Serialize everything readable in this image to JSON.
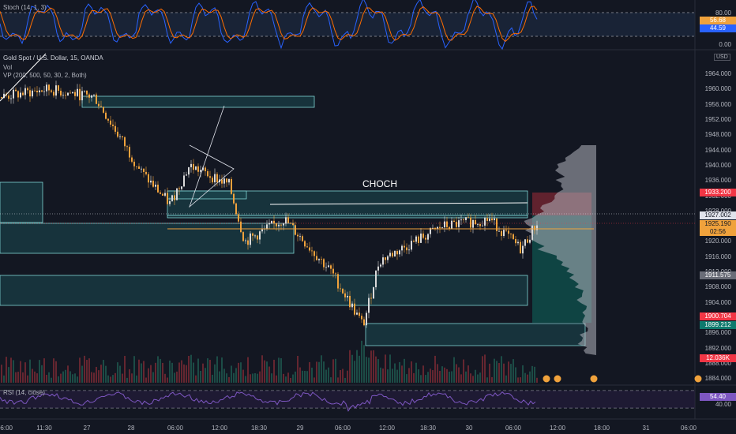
{
  "stoch": {
    "title": "Stoch (14, 1, 3)",
    "ticks": [
      "80.00",
      "0.00"
    ],
    "k_value": "56.68",
    "d_value": "44.59"
  },
  "main": {
    "symbol": "Gold Spot / U.S. Dollar, 15, OANDA",
    "vol_label": "Vol",
    "vp_label": "VP (200, 500, 50, 30, 2, Both)",
    "choch_label": "CHOCH",
    "currency": "USD",
    "price_ticks": [
      "1964.000",
      "1960.000",
      "1956.000",
      "1952.000",
      "1948.000",
      "1944.000",
      "1940.000",
      "1936.000",
      "1932.000",
      "1928.000",
      "1924.000",
      "1920.000",
      "1916.000",
      "1912.000",
      "1908.000",
      "1904.000",
      "1900.000",
      "1896.000",
      "1892.000",
      "1888.000",
      "1884.000"
    ],
    "tags": {
      "upper_zone": "1933.200",
      "level_1927": "1927.002",
      "last_price": "1925.190",
      "countdown": "02:56",
      "level_1911": "1911.575",
      "level_1900": "1900.704",
      "level_1899": "1899.212",
      "volume": "12.036K"
    }
  },
  "rsi": {
    "title": "RSI (14, close)",
    "value": "54.40",
    "tick": "40.00"
  },
  "time_axis": [
    "06:00",
    "11:30",
    "27",
    "28",
    "06:00",
    "12:00",
    "18:30",
    "29",
    "06:00",
    "12:00",
    "18:30",
    "30",
    "06:00",
    "12:00",
    "18:00",
    "31",
    "06:00"
  ],
  "colors": {
    "background": "#131722",
    "zone_fill": "#1b4a52",
    "zone_border": "#7fd4d4",
    "candle_up": "#d9d9d9",
    "candle_down": "#f0a23c",
    "stoch_k": "#2962ff",
    "stoch_d": "#ff6d00",
    "rsi_line": "#7e57c2",
    "tag_red": "#f23645",
    "tag_teal": "#0e7a6e",
    "tag_orange": "#f0a23c",
    "tag_gray": "#6a6d78"
  }
}
